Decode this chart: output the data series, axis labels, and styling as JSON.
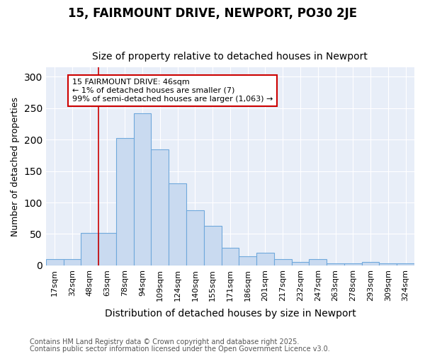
{
  "title1": "15, FAIRMOUNT DRIVE, NEWPORT, PO30 2JE",
  "title2": "Size of property relative to detached houses in Newport",
  "xlabel": "Distribution of detached houses by size in Newport",
  "ylabel": "Number of detached properties",
  "categories": [
    "17sqm",
    "32sqm",
    "48sqm",
    "63sqm",
    "78sqm",
    "94sqm",
    "109sqm",
    "124sqm",
    "140sqm",
    "155sqm",
    "171sqm",
    "186sqm",
    "201sqm",
    "217sqm",
    "232sqm",
    "247sqm",
    "263sqm",
    "278sqm",
    "293sqm",
    "309sqm",
    "324sqm"
  ],
  "values": [
    10,
    10,
    52,
    52,
    203,
    242,
    184,
    130,
    88,
    63,
    28,
    15,
    20,
    10,
    5,
    10,
    3,
    3,
    5,
    3,
    3
  ],
  "bar_color": "#c9daf0",
  "bar_edge_color": "#6fa8dc",
  "red_line_x": 2.5,
  "ylim": [
    0,
    315
  ],
  "yticks": [
    0,
    50,
    100,
    150,
    200,
    250,
    300
  ],
  "annotation_text": "15 FAIRMOUNT DRIVE: 46sqm\n← 1% of detached houses are smaller (7)\n99% of semi-detached houses are larger (1,063) →",
  "annotation_box_facecolor": "#ffffff",
  "annotation_box_edgecolor": "#cc0000",
  "footnote1": "Contains HM Land Registry data © Crown copyright and database right 2025.",
  "footnote2": "Contains public sector information licensed under the Open Government Licence v3.0.",
  "bg_color": "#ffffff",
  "plot_bg_color": "#e8eef8",
  "grid_color": "#ffffff",
  "title1_fontsize": 12,
  "title2_fontsize": 10,
  "tick_fontsize": 8,
  "ylabel_fontsize": 9,
  "xlabel_fontsize": 10,
  "footnote_fontsize": 7,
  "annotation_fontsize": 8
}
